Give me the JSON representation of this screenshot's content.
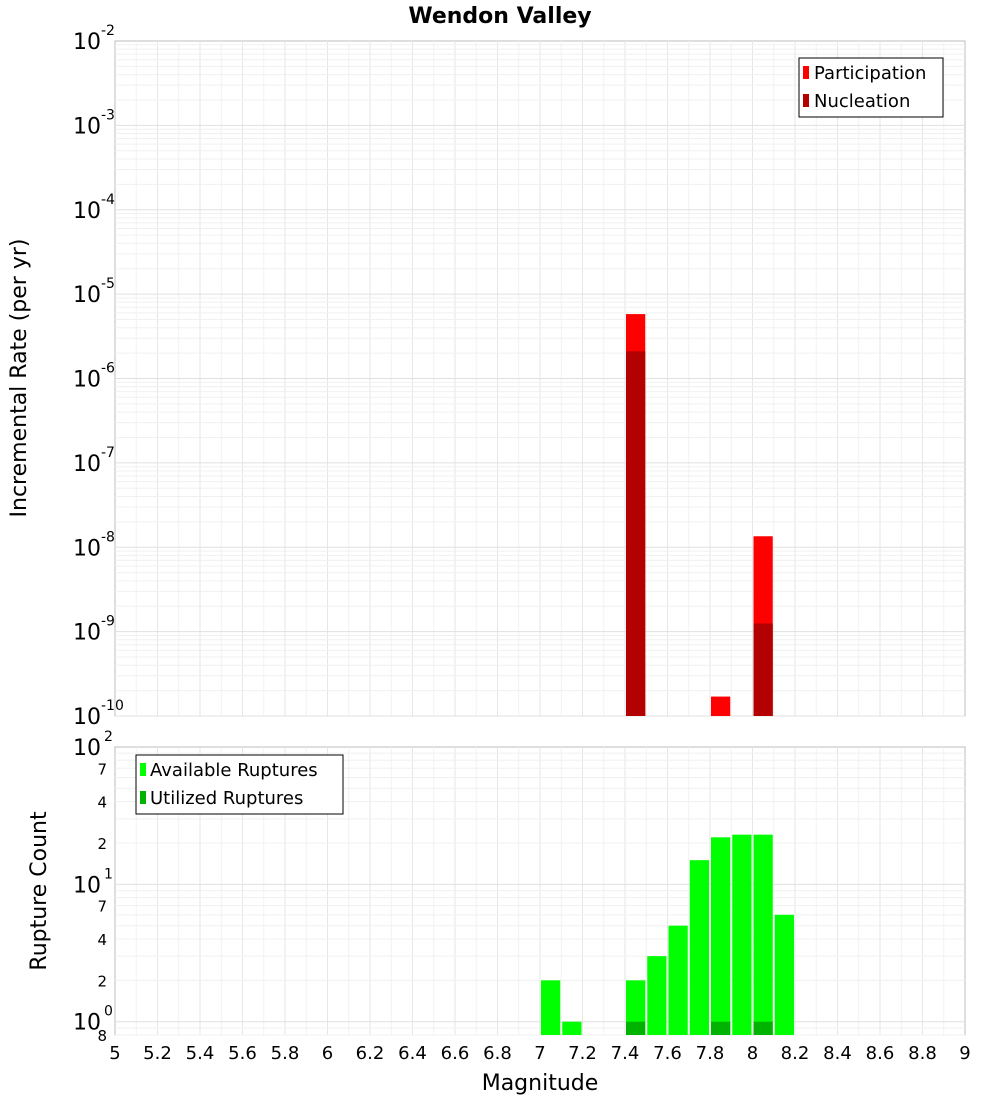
{
  "chart_data": [
    {
      "type": "bar",
      "title": "Wendon Valley",
      "xlabel": "",
      "ylabel": "Incremental Rate (per yr)",
      "scale_y": "log",
      "xlim": [
        5,
        9
      ],
      "ylim": [
        1e-10,
        0.01
      ],
      "grid": true,
      "legend_position": "top-right",
      "bin_width": 0.1,
      "y_tick_mantissas": [
        "10",
        "10",
        "10",
        "10",
        "10",
        "10",
        "10",
        "10",
        "10"
      ],
      "y_tick_exponents": [
        "-10",
        "-9",
        "-8",
        "-7",
        "-6",
        "-5",
        "-4",
        "-3",
        "-2"
      ],
      "series": [
        {
          "name": "Participation",
          "color": "#ff0000",
          "x": [
            7.45,
            7.85,
            8.05
          ],
          "values": [
            5.8e-06,
            1.7e-10,
            1.35e-08
          ]
        },
        {
          "name": "Nucleation",
          "color": "#b30000",
          "x": [
            7.45,
            8.05
          ],
          "values": [
            2.1e-06,
            1.25e-09
          ]
        }
      ]
    },
    {
      "type": "bar",
      "title": "",
      "xlabel": "Magnitude",
      "ylabel": "Rupture Count",
      "scale_y": "log",
      "xlim": [
        5,
        9
      ],
      "ylim": [
        0.8,
        100
      ],
      "grid": true,
      "legend_position": "top-left",
      "bin_width": 0.1,
      "x_ticks": [
        "5",
        "5.2",
        "5.4",
        "5.6",
        "5.8",
        "6",
        "6.2",
        "6.4",
        "6.6",
        "6.8",
        "7",
        "7.2",
        "7.4",
        "7.6",
        "7.8",
        "8",
        "8.2",
        "8.4",
        "8.6",
        "8.8",
        "9"
      ],
      "y_major_ticks": [
        {
          "mantissa": "10",
          "exponent": "0",
          "value": 1
        },
        {
          "mantissa": "10",
          "exponent": "1",
          "value": 10
        },
        {
          "mantissa": "10",
          "exponent": "2",
          "value": 100
        }
      ],
      "y_minor_ticks": [
        {
          "label": "8",
          "value": 0.8
        },
        {
          "label": "2",
          "value": 2
        },
        {
          "label": "4",
          "value": 4
        },
        {
          "label": "7",
          "value": 7
        },
        {
          "label": "2",
          "value": 20
        },
        {
          "label": "4",
          "value": 40
        },
        {
          "label": "7",
          "value": 70
        }
      ],
      "series": [
        {
          "name": "Available Ruptures",
          "color": "#00ff00",
          "x": [
            7.05,
            7.15,
            7.45,
            7.55,
            7.65,
            7.75,
            7.85,
            7.95,
            8.05,
            8.15
          ],
          "values": [
            2,
            1,
            2,
            3,
            5,
            15,
            22,
            23,
            23,
            6
          ]
        },
        {
          "name": "Utilized Ruptures",
          "color": "#00b300",
          "x": [
            7.45,
            7.85,
            8.05
          ],
          "values": [
            1,
            1,
            1
          ]
        }
      ]
    }
  ]
}
